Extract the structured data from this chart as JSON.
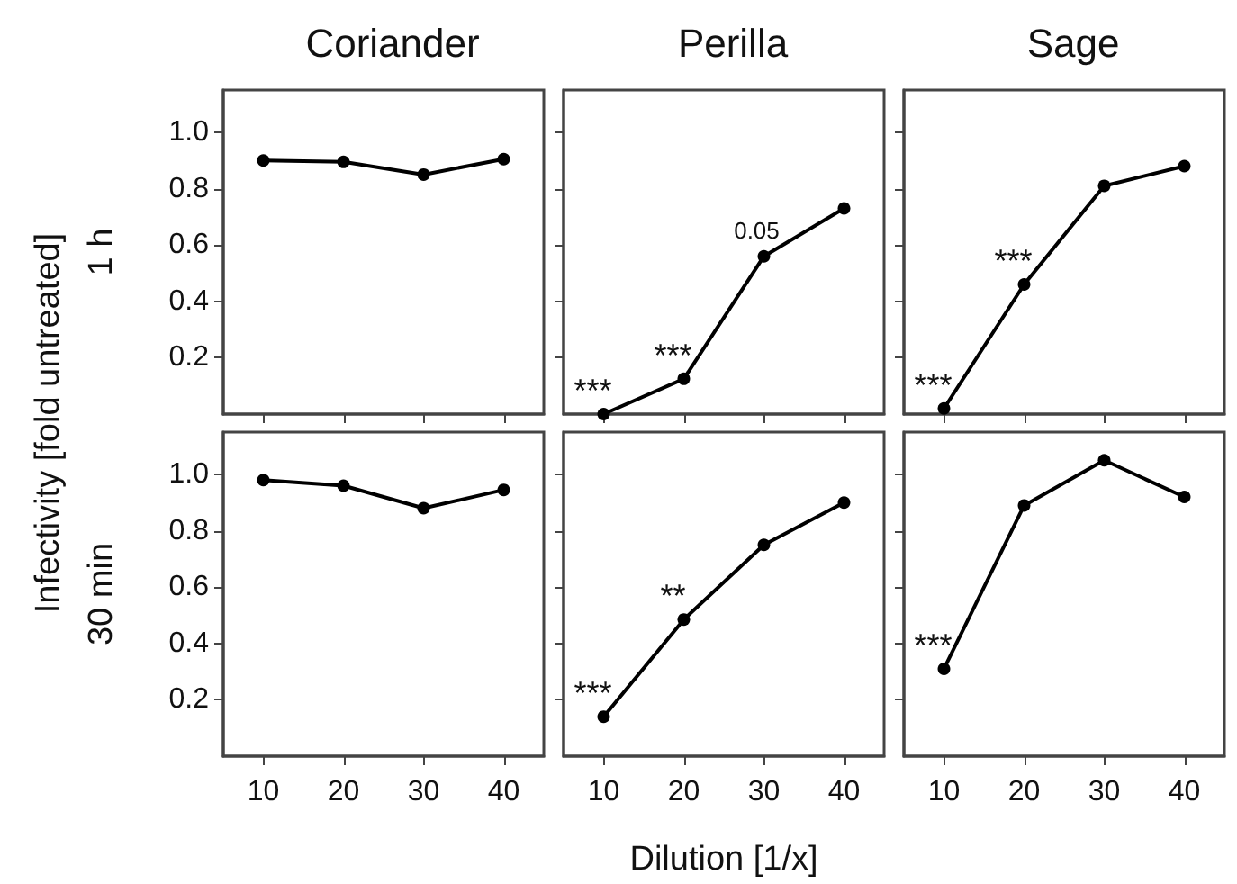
{
  "chart_data": [
    {
      "type": "line",
      "title": "Coriander",
      "ylabel": "1 h",
      "annotations": [
        "Infectivity [fold untreated]"
      ],
      "x": [
        10,
        20,
        30,
        40
      ],
      "values": [
        0.9,
        0.895,
        0.85,
        0.905
      ],
      "color": "#000000",
      "xlim": [
        5,
        45
      ],
      "xticks": [
        10,
        20,
        30,
        40
      ],
      "ylim": [
        0,
        1.15
      ],
      "yticks": [
        0.2,
        0.4,
        0.6,
        0.8,
        {
          "value": 1,
          "label": "1.0"
        }
      ],
      "marker": "circle",
      "line_style": "solid",
      "tick_labels": "y"
    },
    {
      "type": "line",
      "title": "Perilla",
      "annotations": [
        {
          "text": "***",
          "x": 10,
          "y": 0.0
        },
        {
          "text": "***",
          "x": 20,
          "y": 0.125
        },
        {
          "text": "0.05",
          "x": 30,
          "y": 0.56
        }
      ],
      "x": [
        10,
        20,
        30,
        40
      ],
      "values": [
        0.0,
        0.125,
        0.56,
        0.73
      ],
      "color": "#000000",
      "xlim": [
        5,
        45
      ],
      "xticks": [
        10,
        20,
        30,
        40
      ],
      "ylim": [
        0,
        1.15
      ],
      "yticks": [
        0.2,
        0.4,
        0.6,
        0.8,
        1
      ],
      "marker": "circle",
      "line_style": "solid",
      "tick_labels": false
    },
    {
      "type": "line",
      "title": "Sage",
      "annotations": [
        {
          "text": "***",
          "x": 10,
          "y": 0.02
        },
        {
          "text": "***",
          "x": 20,
          "y": 0.46
        }
      ],
      "x": [
        10,
        20,
        30,
        40
      ],
      "values": [
        0.02,
        0.46,
        0.81,
        0.88
      ],
      "color": "#000000",
      "xlim": [
        5,
        45
      ],
      "xticks": [
        10,
        20,
        30,
        40
      ],
      "ylim": [
        0,
        1.15
      ],
      "yticks": [
        0.2,
        0.4,
        0.6,
        0.8,
        1
      ],
      "marker": "circle",
      "line_style": "solid",
      "tick_labels": false
    },
    {
      "type": "line",
      "ylabel": "30 min",
      "x": [
        10,
        20,
        30,
        40
      ],
      "values": [
        0.98,
        0.96,
        0.88,
        0.945
      ],
      "color": "#000000",
      "xlim": [
        5,
        45
      ],
      "xticks": [
        10,
        20,
        30,
        40
      ],
      "ylim": [
        0,
        1.15
      ],
      "yticks": [
        0.2,
        0.4,
        0.6,
        0.8,
        {
          "value": 1,
          "label": "1.0"
        }
      ],
      "marker": "circle",
      "line_style": "solid"
    },
    {
      "type": "line",
      "xlabel": "Dilution [1/x]",
      "annotations": [
        {
          "text": "***",
          "x": 10,
          "y": 0.14
        },
        {
          "text": "**",
          "x": 20,
          "y": 0.485
        }
      ],
      "x": [
        10,
        20,
        30,
        40
      ],
      "values": [
        0.14,
        0.485,
        0.75,
        0.9
      ],
      "color": "#000000",
      "xlim": [
        5,
        45
      ],
      "xticks": [
        10,
        20,
        30,
        40
      ],
      "ylim": [
        0,
        1.15
      ],
      "yticks": [
        0.2,
        0.4,
        0.6,
        0.8,
        1
      ],
      "marker": "circle",
      "line_style": "solid",
      "tick_labels": "x"
    },
    {
      "type": "line",
      "annotations": [
        {
          "text": "***",
          "x": 10,
          "y": 0.31
        }
      ],
      "x": [
        10,
        20,
        30,
        40
      ],
      "values": [
        0.31,
        0.89,
        1.05,
        0.92
      ],
      "color": "#000000",
      "xlim": [
        5,
        45
      ],
      "xticks": [
        10,
        20,
        30,
        40
      ],
      "ylim": [
        0,
        1.15
      ],
      "yticks": [
        0.2,
        0.4,
        0.6,
        0.8,
        1
      ],
      "marker": "circle",
      "line_style": "solid",
      "tick_labels": "x"
    }
  ]
}
